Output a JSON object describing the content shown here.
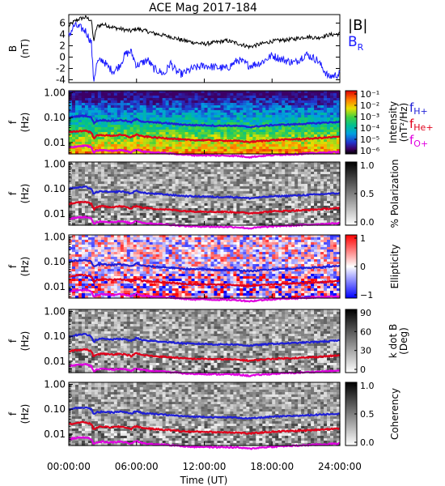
{
  "title": "ACE Mag 2017-184",
  "colors": {
    "bmag": "#000000",
    "br": "#1a1aff",
    "h": "#1f1fd6",
    "he": "#e0001a",
    "o": "#e000e0"
  },
  "xaxis": {
    "label": "Time (UT)",
    "ticks": [
      "00:00:00",
      "06:00:00",
      "12:00:00",
      "18:00:00",
      "24:00:00"
    ],
    "tick_hours": [
      0,
      6,
      12,
      18,
      24
    ],
    "range_hours": [
      0,
      24
    ]
  },
  "freq_axis": {
    "label_top": "f",
    "label_bottom": "(Hz)",
    "ticks": [
      "1.00",
      "0.10",
      "0.01"
    ],
    "tick_values": [
      1.0,
      0.1,
      0.01
    ],
    "range": [
      0.0035,
      1.2
    ],
    "scale": "log"
  },
  "legend": {
    "bmag": "|B|",
    "br_main": "B",
    "br_sub": "R",
    "h_main": "f",
    "h_sub": "H+",
    "he_main": "f",
    "he_sub": "He+",
    "o_main": "f",
    "o_sub": "O+"
  },
  "panels": [
    {
      "key": "bfield",
      "type": "line",
      "ylabel_top": "B",
      "ylabel_bottom": "(nT)",
      "yticks": [
        "6",
        "4",
        "2",
        "0",
        "-2",
        "-4"
      ],
      "ytick_values": [
        6,
        4,
        2,
        0,
        -2,
        -4
      ],
      "ylim": [
        -4.5,
        7.5
      ]
    },
    {
      "key": "intensity",
      "type": "heatmap",
      "colormap": "rainbow",
      "bar_label_1": "Intensity",
      "bar_label_2": "(nT²/Hz)",
      "bar_ticks": [
        "10⁻¹",
        "10⁻²",
        "10⁻³",
        "10⁻⁴",
        "10⁻⁵",
        "10⁻⁶"
      ]
    },
    {
      "key": "polarization",
      "type": "heatmap",
      "colormap": "gray",
      "bar_label_1": "% Polarization",
      "bar_label_2": "",
      "bar_ticks": [
        "1.0",
        "0.5",
        "0.0"
      ]
    },
    {
      "key": "ellipticity",
      "type": "heatmap",
      "colormap": "bwr",
      "bar_label_1": "Ellipticity",
      "bar_label_2": "",
      "bar_ticks": [
        "1",
        "0",
        "−1"
      ]
    },
    {
      "key": "kdotb",
      "type": "heatmap",
      "colormap": "gray",
      "bar_label_1": "k dot B",
      "bar_label_2": "(Deg)",
      "bar_ticks": [
        "90",
        "60",
        "30",
        "0"
      ]
    },
    {
      "key": "coherency",
      "type": "heatmap",
      "colormap": "gray",
      "bar_label_1": "Coherency",
      "bar_label_2": "",
      "bar_ticks": [
        "1.0",
        "0.5",
        "0.0"
      ]
    }
  ],
  "chart_data": {
    "type": "line",
    "title": "ACE Mag 2017-184",
    "xlabel": "Time (UT)",
    "x_hours": [
      0,
      0.5,
      1,
      1.5,
      2,
      2.2,
      2.5,
      3,
      3.5,
      4,
      4.5,
      5,
      5.5,
      6,
      6.5,
      7,
      7.5,
      8,
      8.5,
      9,
      9.5,
      10,
      11,
      12,
      13,
      14,
      15,
      16,
      17,
      18,
      19,
      20,
      21,
      22,
      23,
      24
    ],
    "series": [
      {
        "name": "|B|",
        "values": [
          5.5,
          6.3,
          6.8,
          7.0,
          6.5,
          2.8,
          5.4,
          5.8,
          5.5,
          5.2,
          5.0,
          4.8,
          4.6,
          5.0,
          4.8,
          4.5,
          4.2,
          4.0,
          3.8,
          3.6,
          3.3,
          3.0,
          2.6,
          2.3,
          2.6,
          2.9,
          2.4,
          1.8,
          2.3,
          2.8,
          3.0,
          3.2,
          3.6,
          3.4,
          3.9,
          4.1
        ]
      },
      {
        "name": "B_R",
        "values": [
          3.8,
          5.6,
          5.2,
          4.6,
          2.5,
          -4.2,
          -1.0,
          -0.5,
          -1.8,
          -2.5,
          -1.5,
          0.5,
          1.0,
          -1.5,
          -1.0,
          -0.5,
          -2.0,
          -2.5,
          -3.0,
          -1.0,
          -2.5,
          -3.0,
          -2.0,
          -1.5,
          -1.8,
          -2.0,
          -0.5,
          -1.5,
          -1.0,
          0.3,
          -0.5,
          -1.0,
          0.5,
          -0.5,
          -3.5,
          -3.0
        ]
      },
      {
        "name": "f_H+",
        "values": [
          0.1,
          0.11,
          0.115,
          0.12,
          0.1,
          0.06,
          0.075,
          0.08,
          0.075,
          0.075,
          0.08,
          0.075,
          0.065,
          0.085,
          0.07,
          0.067,
          0.064,
          0.062,
          0.06,
          0.058,
          0.055,
          0.053,
          0.05,
          0.05,
          0.047,
          0.048,
          0.046,
          0.042,
          0.046,
          0.05,
          0.052,
          0.054,
          0.057,
          0.06,
          0.064,
          0.067
        ]
      },
      {
        "name": "f_He+",
        "values": [
          0.025,
          0.0275,
          0.029,
          0.03,
          0.025,
          0.015,
          0.019,
          0.02,
          0.019,
          0.019,
          0.02,
          0.019,
          0.016,
          0.021,
          0.0175,
          0.017,
          0.016,
          0.0155,
          0.015,
          0.0145,
          0.014,
          0.013,
          0.0125,
          0.0125,
          0.012,
          0.012,
          0.0115,
          0.0105,
          0.0115,
          0.0125,
          0.013,
          0.0135,
          0.014,
          0.015,
          0.016,
          0.017
        ]
      },
      {
        "name": "f_O+",
        "values": [
          0.0063,
          0.0069,
          0.0072,
          0.0075,
          0.0063,
          0.0038,
          0.0047,
          0.005,
          0.0047,
          0.0047,
          0.005,
          0.0047,
          0.0041,
          0.0053,
          0.0044,
          0.0042,
          0.004,
          0.0039,
          0.0038,
          0.0036,
          0.0035,
          0.0033,
          0.0031,
          0.0031,
          0.003,
          0.003,
          0.0029,
          0.0026,
          0.0029,
          0.0031,
          0.0033,
          0.0034,
          0.0036,
          0.0038,
          0.004,
          0.0042
        ]
      }
    ]
  }
}
